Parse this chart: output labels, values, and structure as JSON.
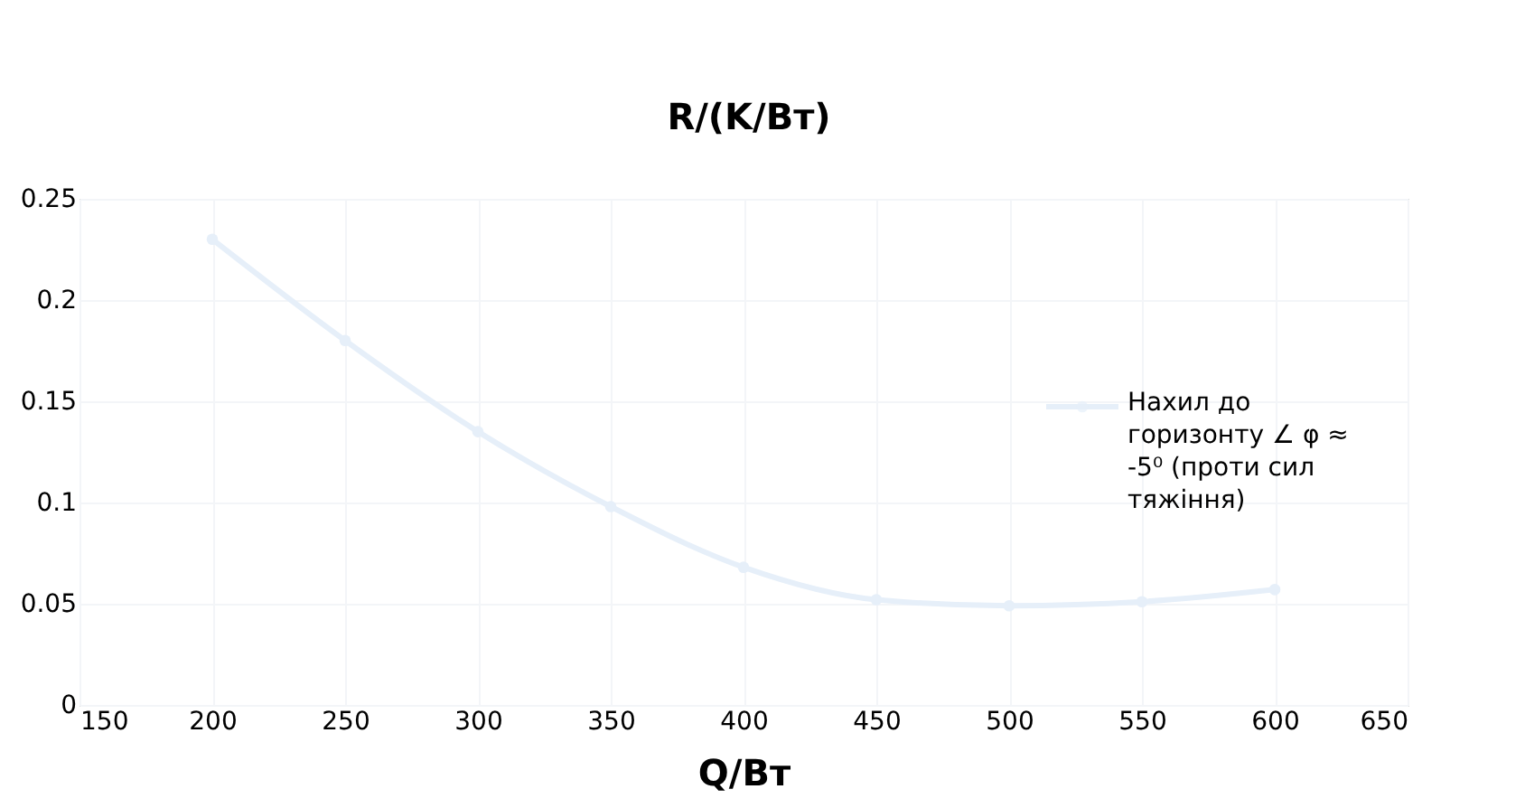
{
  "chart_data": {
    "type": "line",
    "ylabel": "R/(K/Вт)",
    "xlabel": "Q/Вт",
    "x": [
      200,
      250,
      300,
      350,
      400,
      450,
      500,
      550,
      600
    ],
    "series": [
      {
        "name": "Нахил до горизонту  ∠  φ ≈ -5⁰ (проти сил тяжіння)",
        "color": "#e6eff9",
        "values": [
          0.23,
          0.18,
          0.135,
          0.098,
          0.068,
          0.052,
          0.049,
          0.051,
          0.057
        ]
      }
    ],
    "xlim": [
      150,
      650
    ],
    "xticks": [
      150,
      200,
      250,
      300,
      350,
      400,
      450,
      500,
      550,
      600,
      650
    ],
    "ylim": [
      0,
      0.25
    ],
    "yticks": [
      0,
      0.05,
      0.1,
      0.15,
      0.2,
      0.25
    ],
    "grid": true,
    "legend": "right",
    "marker": "circle",
    "line_style": "solid"
  }
}
